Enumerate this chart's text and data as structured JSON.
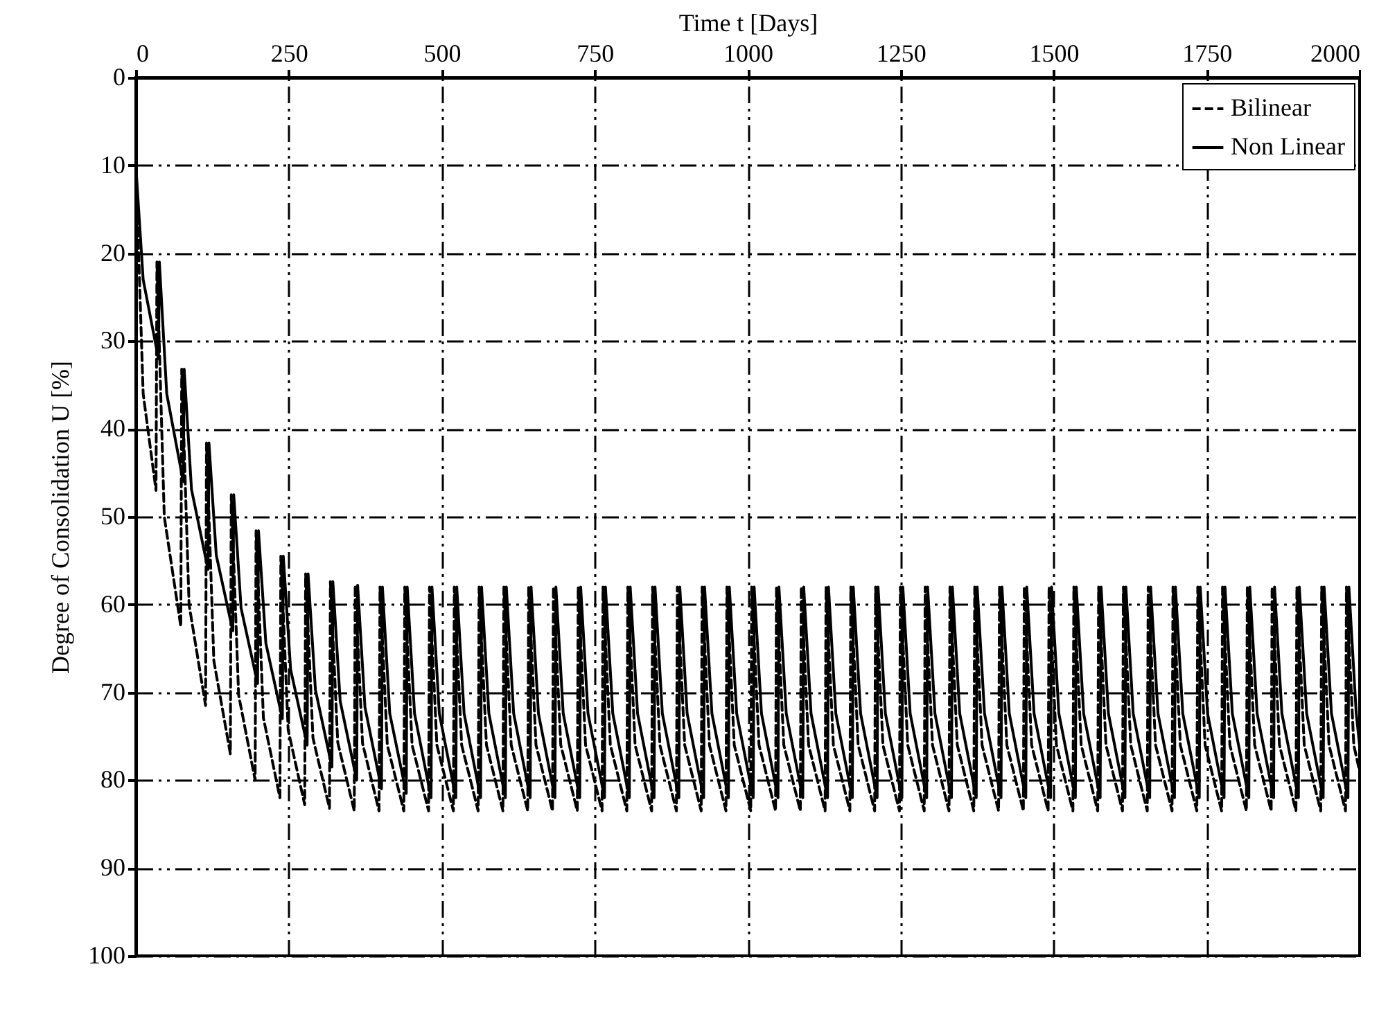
{
  "chart_data": {
    "type": "line",
    "xlabel": "Time t [Days]",
    "ylabel": "Degree of Consolidation U [%]",
    "xlim": [
      0,
      2000
    ],
    "xticks": [
      0,
      250,
      500,
      750,
      1000,
      1250,
      1500,
      1750,
      2000
    ],
    "ylim": [
      100,
      0
    ],
    "yticks": [
      0,
      10,
      20,
      30,
      40,
      50,
      60,
      70,
      80,
      90,
      100
    ],
    "grid": true,
    "legend": "top right",
    "series": [
      {
        "name": "Bilinear",
        "color": "#000000",
        "line_style": "dashed",
        "x": [
          0,
          12,
          33,
          34.5,
          46.5,
          73.5,
          75,
          87,
          114,
          115.5,
          127.5,
          154.5,
          156,
          168,
          195,
          196.5,
          208.5,
          235.5,
          237,
          249,
          276,
          277.5,
          289.5,
          316.5,
          318,
          330,
          357,
          358.5,
          370.5,
          397.5,
          399,
          411,
          438,
          439.5,
          451.5,
          478.5,
          480,
          492,
          519,
          520.5,
          532.5,
          559.5,
          561,
          573,
          600,
          601.5,
          613.5,
          640.5,
          642,
          654,
          681,
          682.5,
          694.5,
          721.5,
          723,
          735,
          762,
          763.5,
          775.5,
          802.5,
          804,
          816,
          843,
          844.5,
          856.5,
          883.5,
          885,
          897,
          924,
          925.5,
          937.5,
          964.5,
          966,
          978,
          1005,
          1006.5,
          1018.5,
          1045.5,
          1047,
          1059,
          1086,
          1087.5,
          1099.5,
          1126.5,
          1128,
          1140,
          1167,
          1168.5,
          1180.5,
          1207.5,
          1209,
          1221,
          1248,
          1249.5,
          1261.5,
          1288.5,
          1290,
          1302,
          1329,
          1330.5,
          1342.5,
          1369.5,
          1371,
          1383,
          1410,
          1411.5,
          1423.5,
          1450.5,
          1452,
          1464,
          1491,
          1492.5,
          1504.5,
          1531.5,
          1533,
          1545,
          1572,
          1573.5,
          1585.5,
          1612.5,
          1614,
          1626,
          1653,
          1654.5,
          1666.5,
          1693.5,
          1695,
          1707,
          1734,
          1735.5,
          1747.5,
          1774.5,
          1776,
          1788,
          1815,
          1816.5,
          1828.5,
          1855.5,
          1857,
          1869,
          1896,
          1897.5,
          1909.5,
          1936.5,
          1938,
          1950,
          1977,
          1978.5,
          1990.5,
          2000
        ],
        "values": [
          10,
          36,
          47,
          21,
          50,
          62.5,
          33.2,
          60,
          71.5,
          41.6,
          66.4,
          77,
          47.5,
          70.3,
          80,
          51.6,
          72.9,
          82,
          54.5,
          74.3,
          82.8,
          56.5,
          75.2,
          83.2,
          57.4,
          75.7,
          83.5,
          57.8,
          75.8,
          83.5,
          58,
          76,
          83.5,
          58,
          76,
          83.5,
          58,
          76,
          83.5,
          58,
          76,
          83.5,
          58,
          76,
          83.5,
          58,
          76,
          83.5,
          58,
          76,
          83.5,
          58,
          76,
          83.5,
          58,
          76,
          83.5,
          58,
          76,
          83.5,
          58,
          76,
          83.5,
          58,
          76,
          83.5,
          58,
          76,
          83.5,
          58,
          76,
          83.5,
          58,
          76,
          83.5,
          58,
          76,
          83.5,
          58,
          76,
          83.5,
          58,
          76,
          83.5,
          58,
          76,
          83.5,
          58,
          76,
          83.5,
          58,
          76,
          83.5,
          58,
          76,
          83.5,
          58,
          76,
          83.5,
          58,
          76,
          83.5,
          58,
          76,
          83.5,
          58,
          76,
          83.5,
          58,
          76,
          83.5,
          58,
          76,
          83.5,
          58,
          76,
          83.5,
          58,
          76,
          83.5,
          58,
          76,
          83.5,
          58,
          76,
          83.5,
          58,
          76,
          83.5,
          58,
          76,
          83.5,
          58,
          76,
          83.5,
          58,
          76,
          83.5,
          58,
          76,
          83.5,
          58,
          76,
          83.5,
          58,
          76,
          83.5,
          58,
          76,
          79
        ]
      },
      {
        "name": "Non Linear",
        "color": "#000000",
        "line_style": "solid",
        "x": [
          0,
          12,
          37,
          38.5,
          50.5,
          77.5,
          79,
          91,
          118,
          119.5,
          131.5,
          158.5,
          160,
          172,
          199,
          200.5,
          212.5,
          239.5,
          241,
          253,
          280,
          281.5,
          293.5,
          320.5,
          322,
          334,
          361,
          362.5,
          374.5,
          401.5,
          403,
          415,
          442,
          443.5,
          455.5,
          482.5,
          484,
          496,
          523,
          524.5,
          536.5,
          563.5,
          565,
          577,
          604,
          605.5,
          617.5,
          644.5,
          646,
          658,
          685,
          686.5,
          698.5,
          725.5,
          727,
          739,
          766,
          767.5,
          779.5,
          806.5,
          808,
          820,
          847,
          848.5,
          860.5,
          887.5,
          889,
          901,
          928,
          929.5,
          941.5,
          968.5,
          970,
          982,
          1009,
          1010.5,
          1022.5,
          1049.5,
          1051,
          1063,
          1090,
          1091.5,
          1103.5,
          1130.5,
          1132,
          1144,
          1171,
          1172.5,
          1184.5,
          1211.5,
          1213,
          1225,
          1252,
          1253.5,
          1265.5,
          1292.5,
          1294,
          1306,
          1333,
          1334.5,
          1346.5,
          1373.5,
          1375,
          1387,
          1414,
          1415.5,
          1427.5,
          1454.5,
          1456,
          1468,
          1495,
          1496.5,
          1508.5,
          1535.5,
          1537,
          1549,
          1576,
          1577.5,
          1589.5,
          1616.5,
          1618,
          1630,
          1657,
          1658.5,
          1670.5,
          1697.5,
          1699,
          1711,
          1738,
          1739.5,
          1751.5,
          1778.5,
          1780,
          1792,
          1819,
          1820.5,
          1832.5,
          1859.5,
          1861,
          1873,
          1900,
          1901.5,
          1913.5,
          1940.5,
          1942,
          1954,
          1981,
          1982.5,
          1994.5,
          2000
        ],
        "values": [
          10,
          23,
          32,
          21,
          36,
          46,
          33.2,
          46.9,
          56,
          41.6,
          54.4,
          63,
          47.5,
          60.4,
          69,
          51.6,
          64.4,
          73,
          54.5,
          67.4,
          76,
          56.5,
          69.7,
          78.5,
          57.4,
          71,
          80,
          57.8,
          71.7,
          81,
          58,
          72.4,
          81.5,
          58,
          72.4,
          82,
          58,
          72.4,
          82,
          58,
          72.4,
          82,
          58,
          72.4,
          82,
          58,
          72.4,
          82,
          58,
          72.4,
          82,
          58,
          72.4,
          82,
          58,
          72.4,
          82,
          58,
          72.4,
          82,
          58,
          72.4,
          82,
          58,
          72.4,
          82,
          58,
          72.4,
          82,
          58,
          72.4,
          82,
          58,
          72.4,
          82,
          58,
          72.4,
          82,
          58,
          72.4,
          82,
          58,
          72.4,
          82,
          58,
          72.4,
          82,
          58,
          72.4,
          82,
          58,
          72.4,
          82,
          58,
          72.4,
          82,
          58,
          72.4,
          82,
          58,
          72.4,
          82,
          58,
          72.4,
          82,
          58,
          72.4,
          82,
          58,
          72.4,
          82,
          58,
          72.4,
          82,
          58,
          72.4,
          82,
          58,
          72.4,
          82,
          58,
          72.4,
          82,
          58,
          72.4,
          82,
          58,
          72.4,
          82,
          58,
          72.4,
          82,
          58,
          72.4,
          82,
          58,
          72.4,
          82,
          58,
          72.4,
          82,
          58,
          72.4,
          82,
          58,
          72.4,
          82,
          58,
          72.4,
          76
        ]
      }
    ]
  }
}
